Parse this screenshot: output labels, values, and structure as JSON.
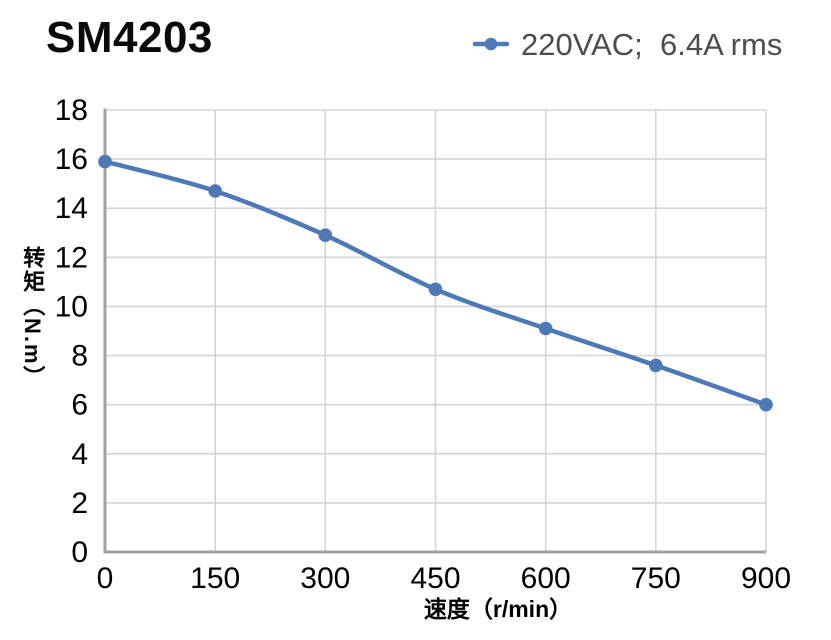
{
  "page": {
    "title": "SM4203"
  },
  "legend": {
    "label": "220VAC;  6.4A rms"
  },
  "axes": {
    "x_title": "速度（r/min）",
    "y_title": "转矩（N.m）"
  },
  "colors": {
    "series_line": "#4e79b7",
    "grid_line": "#d6d6d6",
    "axis_line": "#a3a3a3",
    "tick_text": "#000000",
    "legend_text": "#4d4d4d",
    "title_text": "#0a0a0a"
  },
  "chart_data": {
    "type": "line",
    "title": "SM4203",
    "x": [
      0,
      150,
      300,
      450,
      600,
      750,
      900
    ],
    "series": [
      {
        "name": "220VAC;  6.4A rms",
        "values": [
          15.9,
          14.7,
          12.9,
          10.7,
          9.1,
          7.6,
          6.0
        ]
      }
    ],
    "xlabel": "速度（r/min）",
    "ylabel": "转矩（N.m）",
    "xlim": [
      0,
      900
    ],
    "ylim": [
      0,
      18
    ],
    "xticks": [
      0,
      150,
      300,
      450,
      600,
      750,
      900
    ],
    "yticks": [
      0,
      2,
      4,
      6,
      8,
      10,
      12,
      14,
      16,
      18
    ],
    "grid": true,
    "smooth": true,
    "marker": "circle",
    "legend_position": "top-right"
  }
}
